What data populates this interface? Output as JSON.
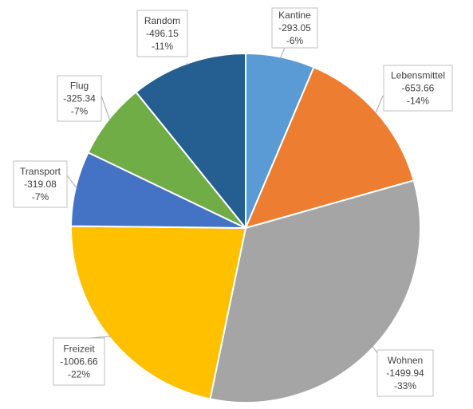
{
  "chart_data": {
    "type": "pie",
    "title": "",
    "series": [
      {
        "name": "",
        "slices": [
          {
            "label": "Kantine",
            "value": -293.05,
            "value_text": "-293.05",
            "percent_text": "-6%",
            "color": "#5b9bd5"
          },
          {
            "label": "Lebensmittel",
            "value": -653.66,
            "value_text": "-653.66",
            "percent_text": "-14%",
            "color": "#ed7d31"
          },
          {
            "label": "Wohnen",
            "value": -1499.94,
            "value_text": "-1499.94",
            "percent_text": "-33%",
            "color": "#a5a5a5"
          },
          {
            "label": "Freizeit",
            "value": -1006.66,
            "value_text": "-1006.66",
            "percent_text": "-22%",
            "color": "#ffc000"
          },
          {
            "label": "Transport",
            "value": -319.08,
            "value_text": "-319.08",
            "percent_text": "-7%",
            "color": "#4472c4"
          },
          {
            "label": "Flug",
            "value": -325.34,
            "value_text": "-325.34",
            "percent_text": "-7%",
            "color": "#70ad47"
          },
          {
            "label": "Random",
            "value": -496.15,
            "value_text": "-496.15",
            "percent_text": "-11%",
            "color": "#255e91"
          }
        ]
      }
    ],
    "start_angle": "12 o'clock",
    "direction": "clockwise",
    "legend": "none",
    "data_labels": "outside, callout boxes with category, value and percentage"
  }
}
